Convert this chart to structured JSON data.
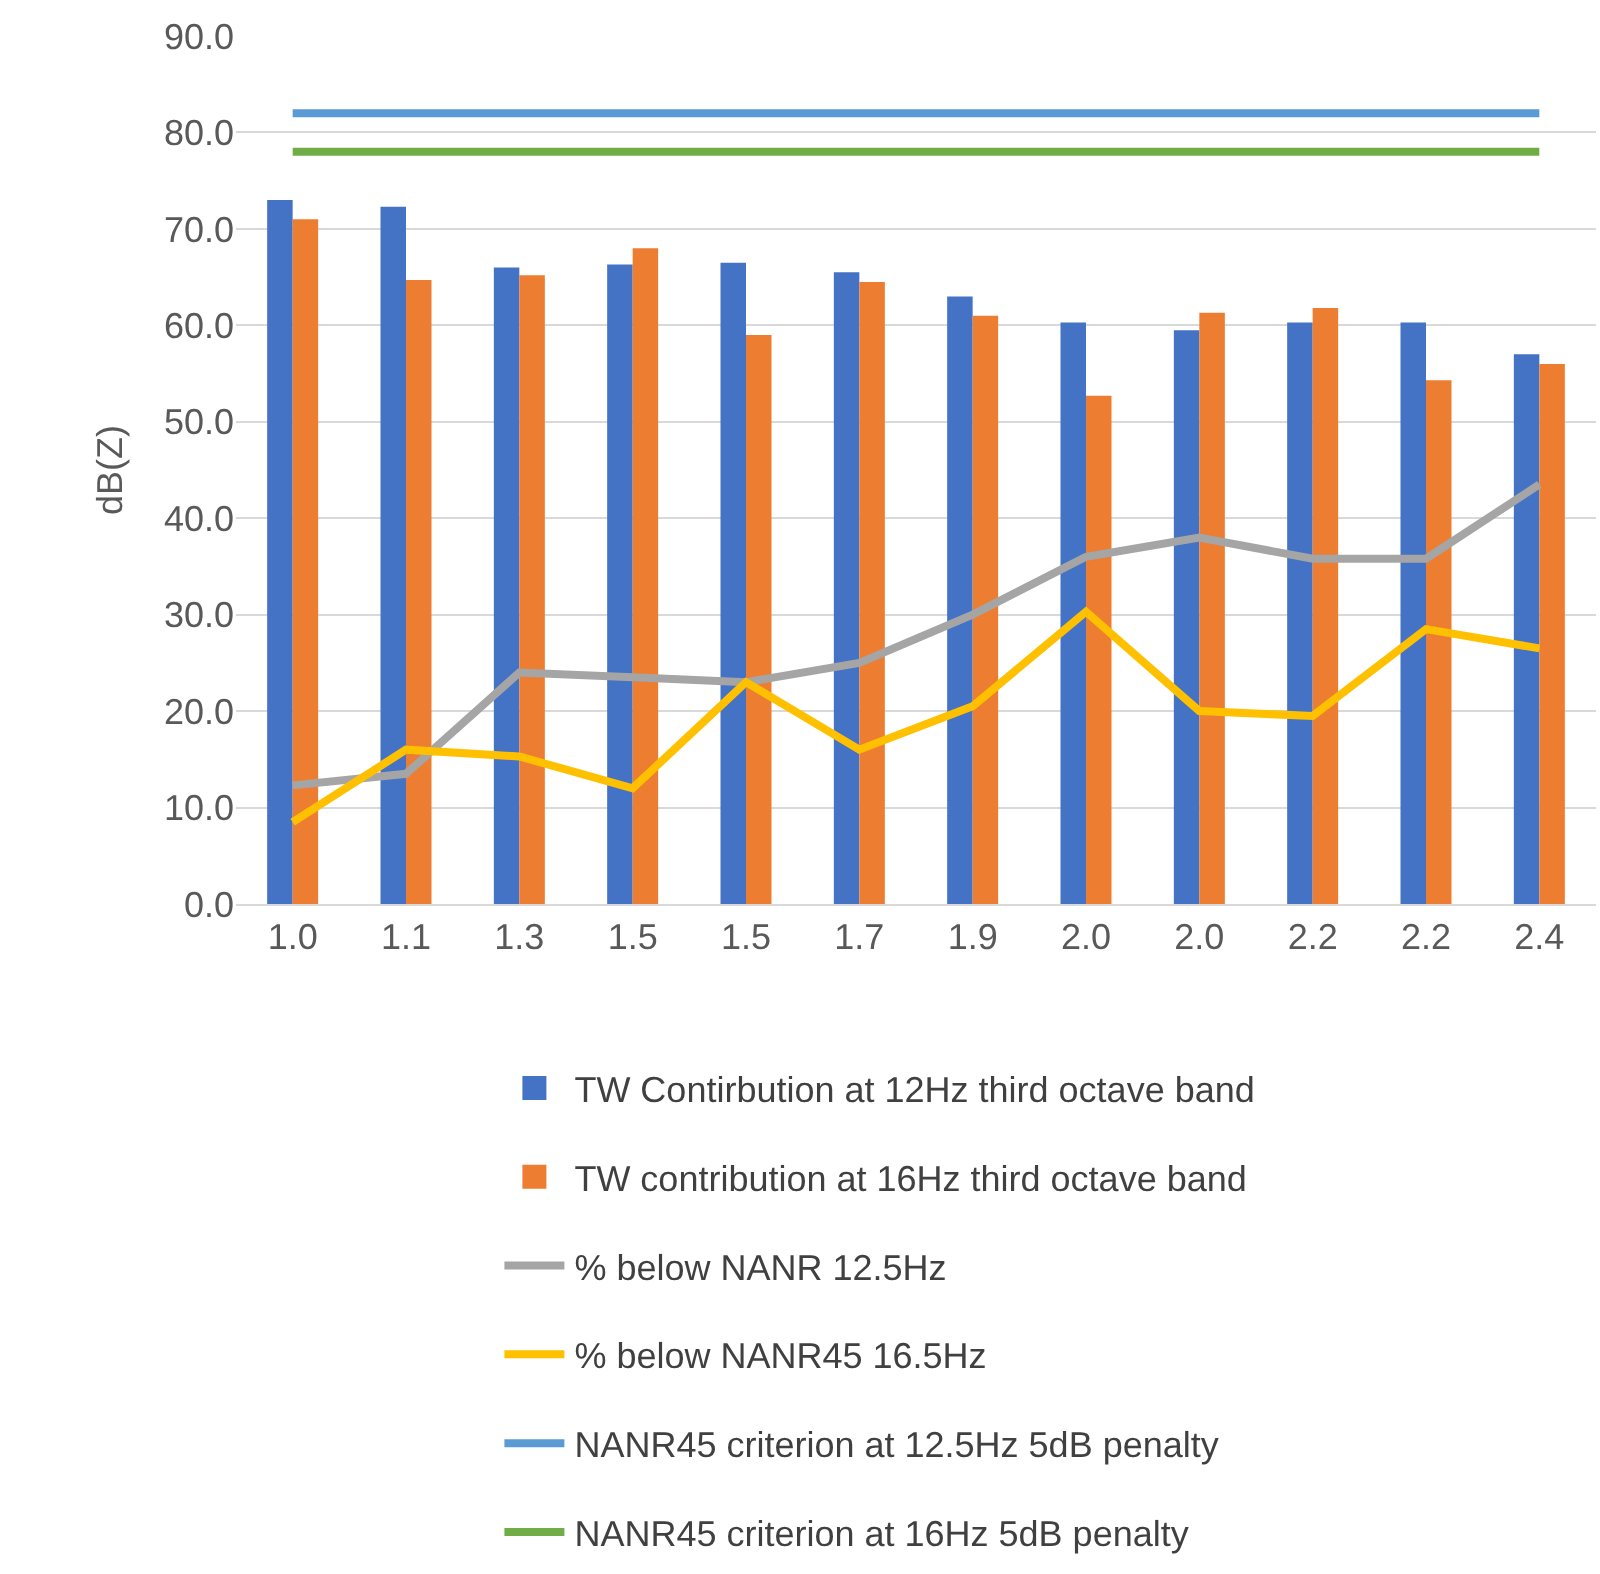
{
  "chart_data": {
    "type": "bar",
    "ylabel": "dB(Z)",
    "categories": [
      "1.0",
      "1.1",
      "1.3",
      "1.5",
      "1.5",
      "1.7",
      "1.9",
      "2.0",
      "2.0",
      "2.2",
      "2.2",
      "2.4"
    ],
    "series": [
      {
        "name": "TW Contirbution at 12Hz third octave band",
        "color": "#4472c4",
        "values": [
          73.0,
          72.3,
          66.0,
          66.3,
          66.5,
          65.5,
          63.0,
          60.3,
          59.5,
          60.3,
          60.3,
          57.0
        ]
      },
      {
        "name": "TW contribution at 16Hz third octave band",
        "color": "#ed7d31",
        "values": [
          71.0,
          64.7,
          65.2,
          68.0,
          59.0,
          64.5,
          61.0,
          52.7,
          61.3,
          61.8,
          54.3,
          56.0
        ]
      },
      {
        "name": "% below NANR 12.5Hz",
        "type": "line",
        "color": "#a5a5a5",
        "values": [
          12.3,
          13.5,
          24.0,
          23.5,
          23.0,
          25.0,
          30.0,
          36.0,
          38.0,
          35.8,
          35.8,
          43.5
        ]
      },
      {
        "name": "% below NANR45 16.5Hz",
        "type": "line",
        "color": "#ffc000",
        "values": [
          8.5,
          16.0,
          15.3,
          12.0,
          23.0,
          16.0,
          20.5,
          30.3,
          20.0,
          19.5,
          28.5,
          26.5
        ]
      },
      {
        "name": "NANR45 criterion at 12.5Hz 5dB penalty",
        "type": "line",
        "color": "#5b9bd5",
        "values": [
          82,
          82,
          82,
          82,
          82,
          82,
          82,
          82,
          82,
          82,
          82,
          82
        ]
      },
      {
        "name": "NANR45 criterion at 16Hz 5dB penalty",
        "type": "line",
        "color": "#70ad47",
        "values": [
          78,
          78,
          78,
          78,
          78,
          78,
          78,
          78,
          78,
          78,
          78,
          78
        ]
      }
    ],
    "ylim": [
      0,
      90
    ],
    "yticks": [
      {
        "value": 0,
        "label": "0.0"
      },
      {
        "value": 10,
        "label": "10.0"
      },
      {
        "value": 20,
        "label": "20.0"
      },
      {
        "value": 30,
        "label": "30.0"
      },
      {
        "value": 40,
        "label": "40.0"
      },
      {
        "value": 50,
        "label": "50.0"
      },
      {
        "value": 60,
        "label": "60.0"
      },
      {
        "value": 70,
        "label": "70.0"
      },
      {
        "value": 80,
        "label": "80.0"
      },
      {
        "value": 90,
        "label": "90.0"
      }
    ],
    "grid": "y",
    "legend": "bottom",
    "marker": "none",
    "line_style": "solid"
  }
}
